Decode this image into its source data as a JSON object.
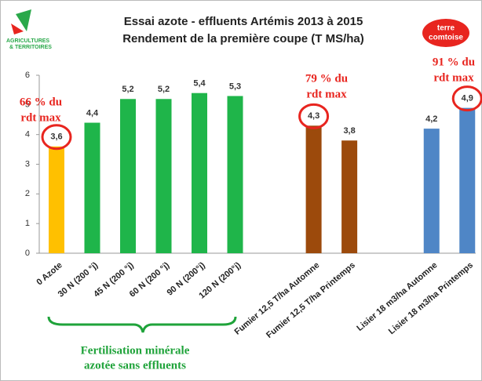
{
  "chart_data": {
    "type": "bar",
    "title": [
      "Essai azote - effluents Artémis 2013 à 2015",
      "Rendement de la première coupe (T MS/ha)"
    ],
    "categories": [
      "0 Azote",
      "30 N (200 °j)",
      "45 N (200 °j)",
      "60 N (200 °j)",
      "90 N (200°j)",
      "120 N (200°j)",
      "Fumier 12,5 T/ha Automne",
      "Fumier 12,5 T/ha Printemps",
      "Lisier 18 m3/ha Automne",
      "Lisier 18 m3/ha Printemps"
    ],
    "values": [
      3.6,
      4.4,
      5.2,
      5.2,
      5.4,
      5.3,
      4.3,
      3.8,
      4.2,
      4.9
    ],
    "value_labels": [
      "3,6",
      "4,4",
      "5,2",
      "5,2",
      "5,4",
      "5,3",
      "4,3",
      "3,8",
      "4,2",
      "4,9"
    ],
    "colors": [
      "#ffc000",
      "#1fb54a",
      "#1fb54a",
      "#1fb54a",
      "#1fb54a",
      "#1fb54a",
      "#9c4a0c",
      "#9c4a0c",
      "#4f86c6",
      "#4f86c6"
    ],
    "ylim": [
      0,
      6
    ],
    "yticks": [
      0,
      1,
      2,
      3,
      4,
      5,
      6
    ],
    "grid": false,
    "annotations": [
      [
        "66 % du",
        "rdt max"
      ],
      [
        "79 % du",
        "rdt max"
      ],
      [
        "91 % du",
        "rdt max"
      ]
    ],
    "group_label": [
      "Fertilisation minérale",
      "azotée sans effluents"
    ],
    "logos": [
      "AGRICULTURES",
      "& TERRITOIRES",
      "terre",
      "comtoise"
    ]
  }
}
